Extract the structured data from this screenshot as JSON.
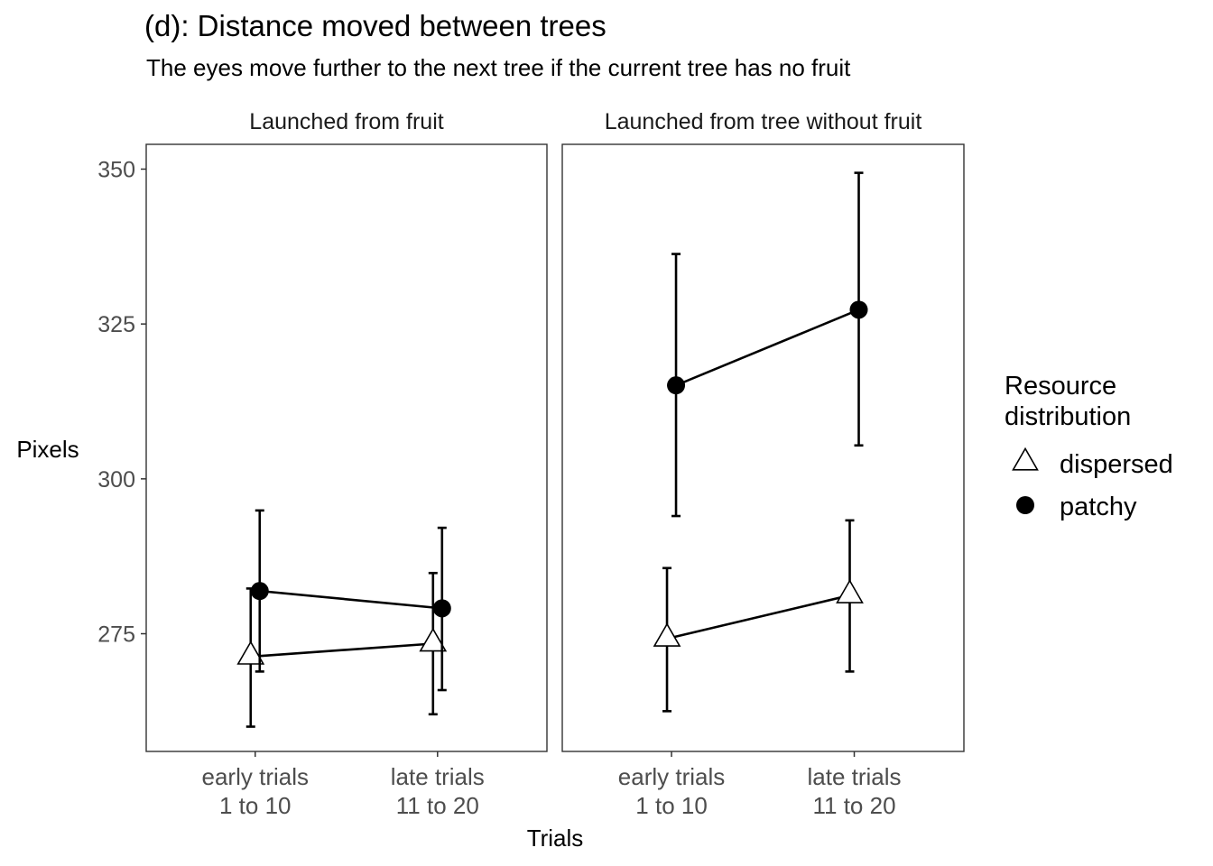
{
  "chart_data": {
    "type": "scatter",
    "title": "(d): Distance moved between trees",
    "subtitle": "The eyes move further to the next tree if the current tree has no fruit",
    "xlabel": "Trials",
    "ylabel": "Pixels",
    "categories": [
      [
        "early trials",
        "1 to 10"
      ],
      [
        "late trials",
        "11 to 20"
      ]
    ],
    "ylim": [
      256,
      354
    ],
    "y_ticks": [
      275,
      300,
      325,
      350
    ],
    "y_tick_labels": [
      "275",
      "300",
      "325",
      "350"
    ],
    "legend": {
      "title": [
        "Resource",
        "distribution"
      ],
      "placement": "right",
      "entries": [
        {
          "label": "dispersed",
          "shape": "open-triangle"
        },
        {
          "label": "patchy",
          "shape": "filled-circle"
        }
      ]
    },
    "colors": {
      "line": "#000000",
      "panel_border": "#333333",
      "tick_text": "#4d4d4d"
    },
    "panels": [
      {
        "label": "Launched from fruit",
        "series": [
          {
            "name": "dispersed",
            "values": [
              271.3,
              273.4
            ],
            "lower": [
              260.0,
              262.0
            ],
            "upper": [
              282.3,
              284.8
            ]
          },
          {
            "name": "patchy",
            "values": [
              281.9,
              279.1
            ],
            "lower": [
              268.9,
              265.9
            ],
            "upper": [
              294.9,
              292.1
            ]
          }
        ]
      },
      {
        "label": "Launched from tree without fruit",
        "series": [
          {
            "name": "dispersed",
            "values": [
              274.2,
              281.2
            ],
            "lower": [
              262.5,
              268.9
            ],
            "upper": [
              285.6,
              293.3
            ]
          },
          {
            "name": "patchy",
            "values": [
              315.1,
              327.3
            ],
            "lower": [
              294.0,
              305.4
            ],
            "upper": [
              336.3,
              349.4
            ]
          }
        ]
      }
    ]
  }
}
